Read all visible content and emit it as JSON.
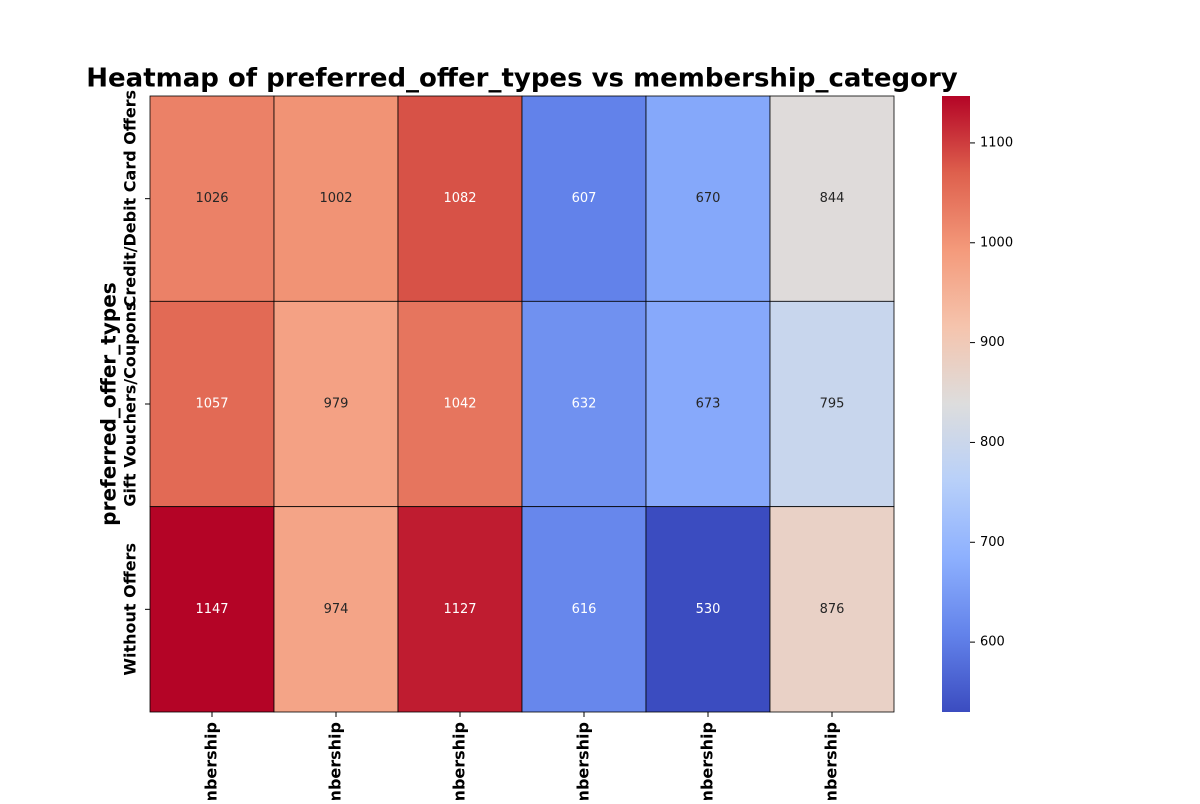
{
  "chart_data": {
    "type": "heatmap",
    "title": "Heatmap of preferred_offer_types vs membership_category",
    "y_label": "preferred_offer_types",
    "x_categories": [
      "mbership",
      "mbership",
      "mbership",
      "mbership",
      "mbership",
      "mbership"
    ],
    "y_categories": [
      "Credit/Debit Card Offers",
      "Gift Vouchers/Coupons",
      "Without Offers"
    ],
    "values": [
      [
        1026,
        1002,
        1082,
        607,
        670,
        844
      ],
      [
        1057,
        979,
        1042,
        632,
        673,
        795
      ],
      [
        1147,
        974,
        1127,
        616,
        530,
        876
      ]
    ],
    "colormap": "coolwarm",
    "zlim": [
      530,
      1147
    ],
    "zticks": [
      600,
      700,
      800,
      900,
      1000,
      1100
    ]
  }
}
